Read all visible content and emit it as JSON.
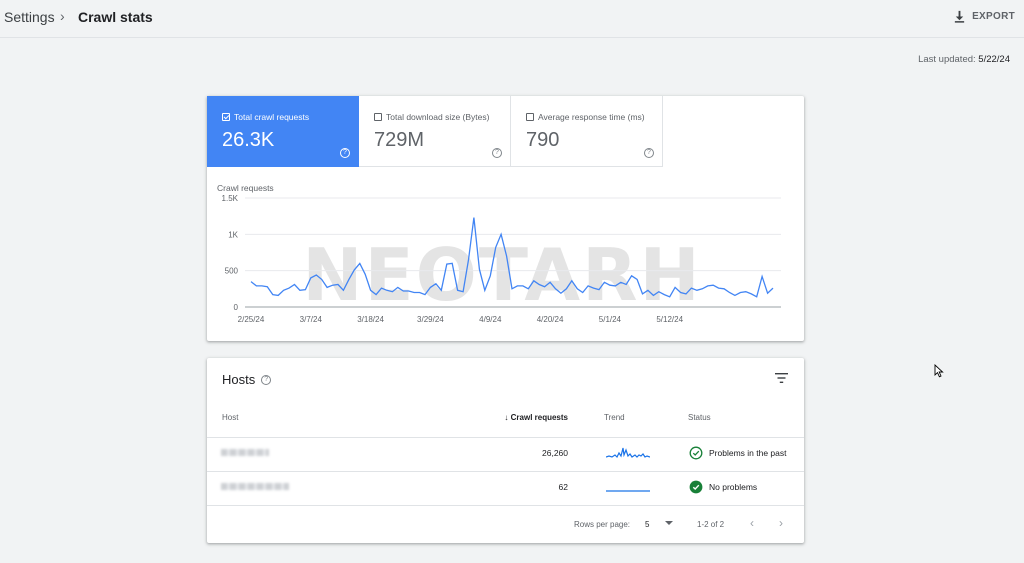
{
  "breadcrumb": {
    "parent": "Settings",
    "separator": "›",
    "current": "Crawl stats"
  },
  "toolbar": {
    "export_label": "EXPORT"
  },
  "last_updated": {
    "label": "Last updated:",
    "value": "5/22/24"
  },
  "metrics": [
    {
      "label": "Total crawl requests",
      "value": "26.3K",
      "selected": true
    },
    {
      "label": "Total download size (Bytes)",
      "value": "729M",
      "selected": false
    },
    {
      "label": "Average response time (ms)",
      "value": "790",
      "selected": false
    }
  ],
  "watermark": "NEOTARH",
  "chart_data": {
    "type": "line",
    "title": "Crawl requests",
    "ylim": [
      0,
      1500
    ],
    "yticks": [
      0,
      500,
      1000,
      1500
    ],
    "ytick_labels": [
      "0",
      "500",
      "1K",
      "1.5K"
    ],
    "xtick_labels": [
      "2/25/24",
      "3/7/24",
      "3/18/24",
      "3/29/24",
      "4/9/24",
      "4/20/24",
      "5/1/24",
      "5/12/24"
    ],
    "grid": true,
    "color": "#4285f4",
    "series": [
      {
        "values": [
          350,
          290,
          290,
          280,
          170,
          160,
          230,
          260,
          310,
          230,
          240,
          400,
          440,
          380,
          270,
          300,
          310,
          230,
          380,
          510,
          600,
          450,
          230,
          170,
          260,
          230,
          210,
          270,
          220,
          220,
          200,
          200,
          170,
          270,
          320,
          230,
          590,
          600,
          230,
          210,
          650,
          1230,
          520,
          230,
          430,
          820,
          1000,
          700,
          250,
          290,
          290,
          250,
          360,
          310,
          280,
          340,
          250,
          190,
          250,
          360,
          250,
          200,
          290,
          260,
          240,
          340,
          300,
          290,
          340,
          310,
          430,
          380,
          180,
          230,
          160,
          210,
          170,
          140,
          270,
          200,
          180,
          260,
          230,
          250,
          290,
          300,
          260,
          250,
          200,
          160,
          200,
          210,
          180,
          140,
          420,
          190,
          260
        ]
      }
    ]
  },
  "hosts": {
    "title": "Hosts",
    "columns": {
      "host": "Host",
      "crawl": "Crawl requests",
      "trend": "Trend",
      "status": "Status"
    },
    "rows": [
      {
        "crawl": "26,260",
        "status": "Problems in the past",
        "status_type": "past"
      },
      {
        "crawl": "62",
        "status": "No problems",
        "status_type": "ok"
      }
    ],
    "pagination": {
      "rows_label": "Rows per page:",
      "rows_value": "5",
      "range": "1-2 of 2",
      "prev": "‹",
      "next": "›"
    }
  }
}
